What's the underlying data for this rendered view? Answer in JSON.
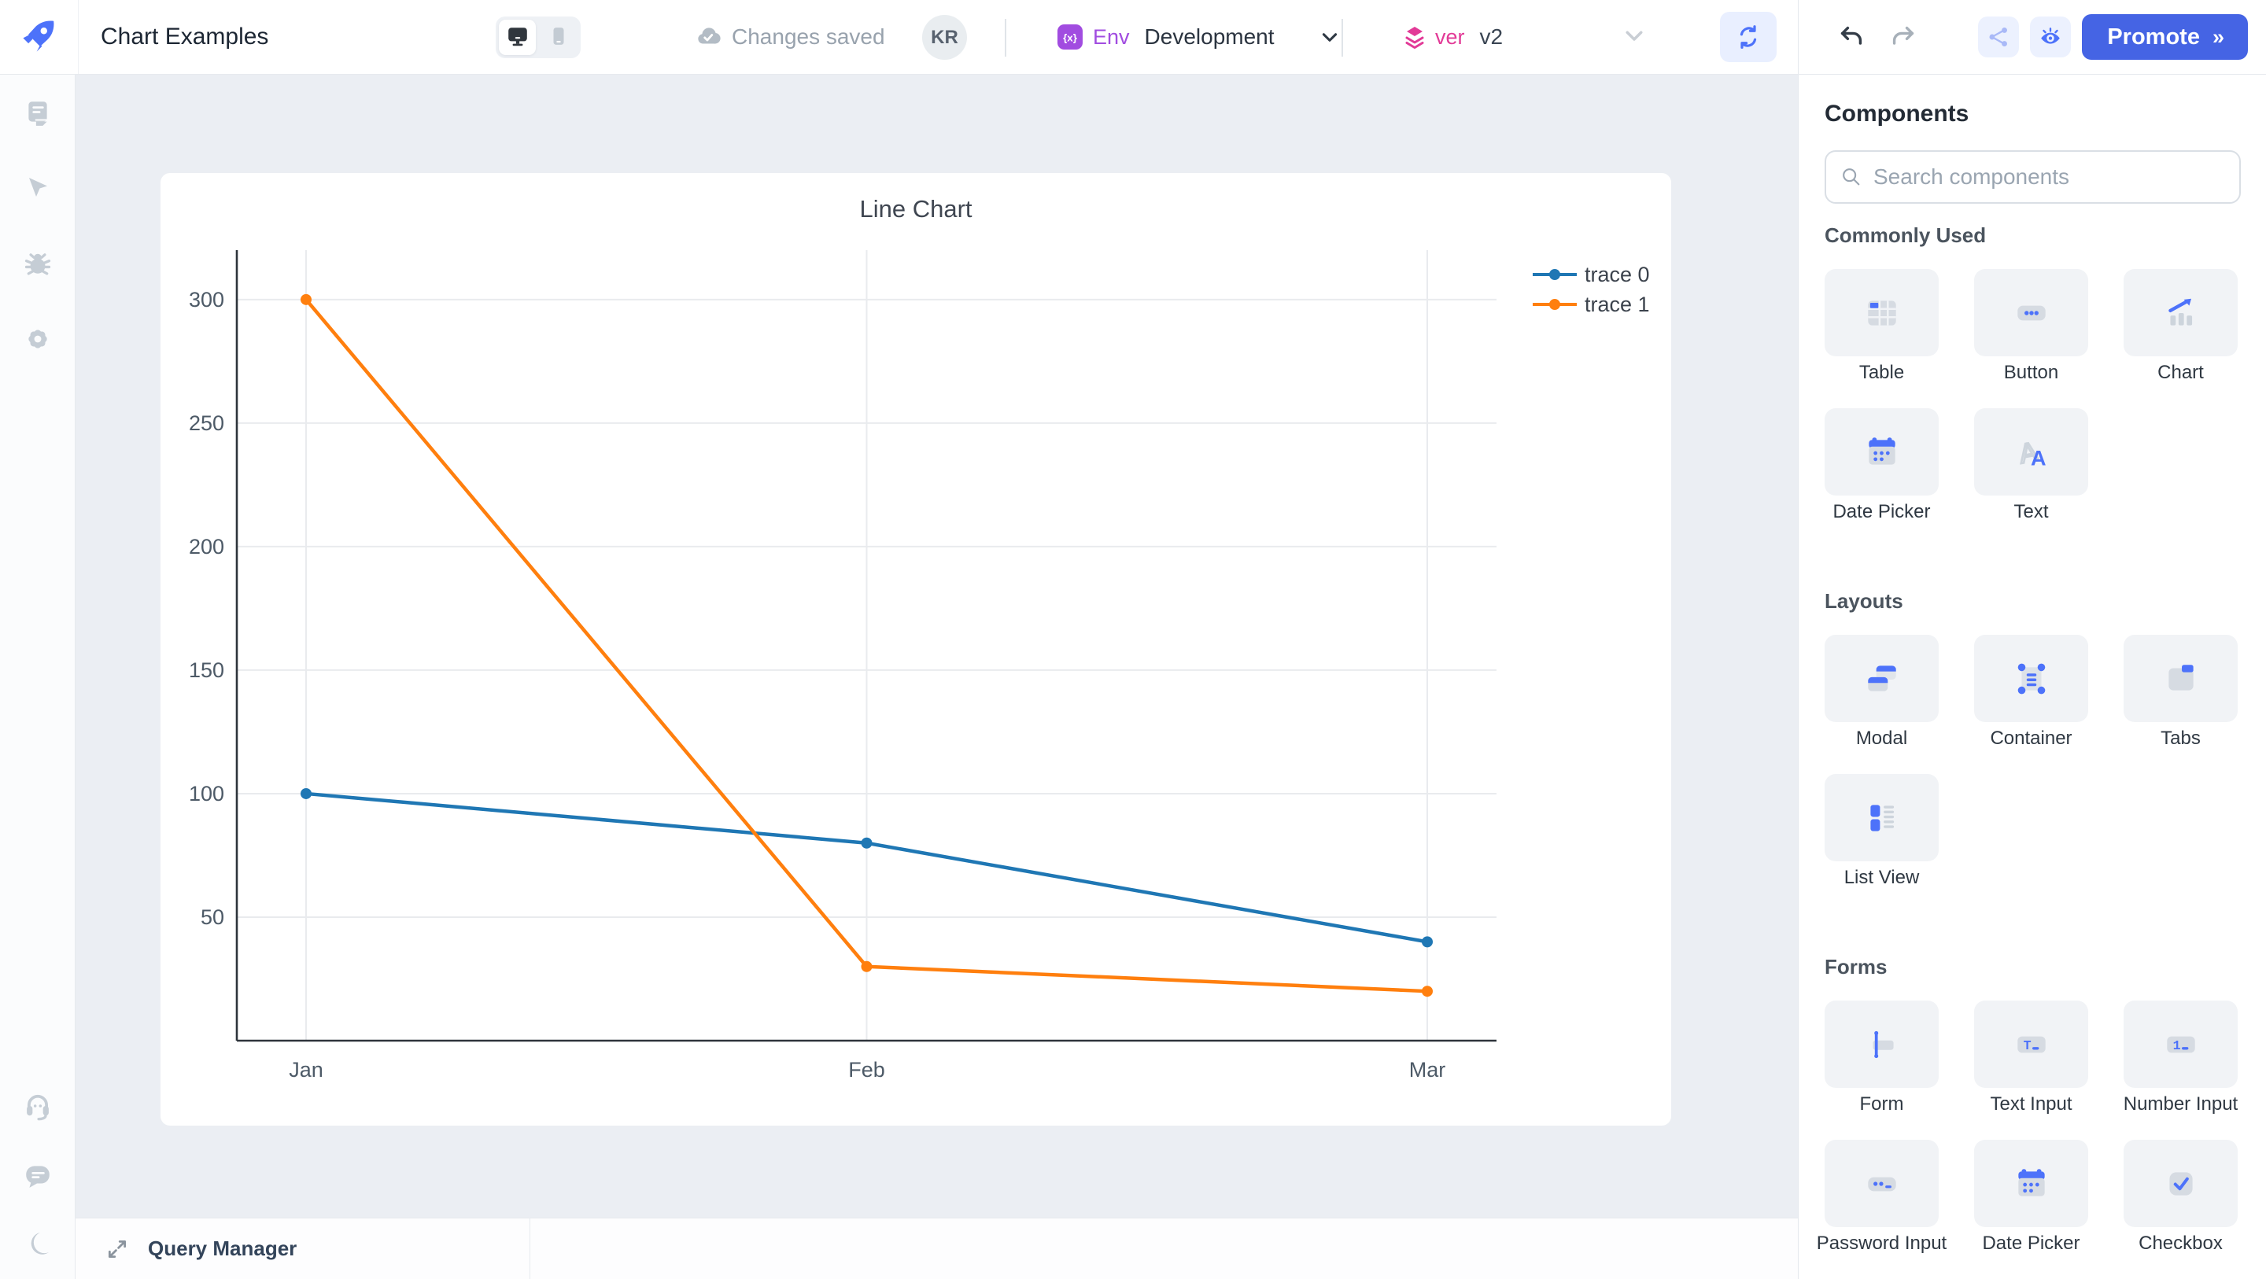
{
  "header": {
    "app_title": "Chart Examples",
    "autosave_status": "Changes saved",
    "avatar_initials": "KR",
    "env": {
      "label": "Env",
      "value": "Development"
    },
    "version": {
      "label": "ver",
      "value": "v2"
    },
    "promote_label": "Promote",
    "promote_chevrons": "»"
  },
  "sidebar": {
    "top_icons": [
      "pages-icon",
      "pointer-icon",
      "debugger-icon",
      "settings-icon"
    ],
    "bottom_icons": [
      "support-icon",
      "chat-icon",
      "dark-mode-icon"
    ]
  },
  "chart_data": {
    "type": "line",
    "title": "Line Chart",
    "x": [
      "Jan",
      "Feb",
      "Mar"
    ],
    "series": [
      {
        "name": "trace 0",
        "color": "#1f77b4",
        "values": [
          100,
          80,
          40
        ]
      },
      {
        "name": "trace 1",
        "color": "#ff7f0e",
        "values": [
          300,
          30,
          20
        ]
      }
    ],
    "yticks": [
      50,
      100,
      150,
      200,
      250,
      300
    ],
    "ylim": [
      0,
      320
    ],
    "grid": true,
    "legend_position": "top-right"
  },
  "components_panel": {
    "title": "Components",
    "search_placeholder": "Search components",
    "sections": [
      {
        "title": "Commonly Used",
        "items": [
          {
            "label": "Table",
            "icon": "table"
          },
          {
            "label": "Button",
            "icon": "button"
          },
          {
            "label": "Chart",
            "icon": "chart"
          },
          {
            "label": "Date Picker",
            "icon": "datepicker"
          },
          {
            "label": "Text",
            "icon": "text"
          }
        ]
      },
      {
        "title": "Layouts",
        "items": [
          {
            "label": "Modal",
            "icon": "modal"
          },
          {
            "label": "Container",
            "icon": "container"
          },
          {
            "label": "Tabs",
            "icon": "tabs"
          },
          {
            "label": "List View",
            "icon": "listview"
          }
        ]
      },
      {
        "title": "Forms",
        "items": [
          {
            "label": "Form",
            "icon": "form"
          },
          {
            "label": "Text Input",
            "icon": "textinput"
          },
          {
            "label": "Number Input",
            "icon": "numberinput"
          },
          {
            "label": "Password Input",
            "icon": "passwordinput"
          },
          {
            "label": "Date Picker",
            "icon": "datepicker"
          },
          {
            "label": "Checkbox",
            "icon": "checkbox"
          }
        ]
      }
    ]
  },
  "bottom_bar": {
    "query_manager_label": "Query Manager"
  },
  "colors": {
    "accent_blue": "#4d72fa",
    "promote_blue": "#4564e4",
    "env_purple": "#a14ce0",
    "version_pink": "#e23a97",
    "trace0_blue": "#1f77b4",
    "trace1_orange": "#ff7f0e",
    "canvas_bg": "#ebeef3"
  }
}
